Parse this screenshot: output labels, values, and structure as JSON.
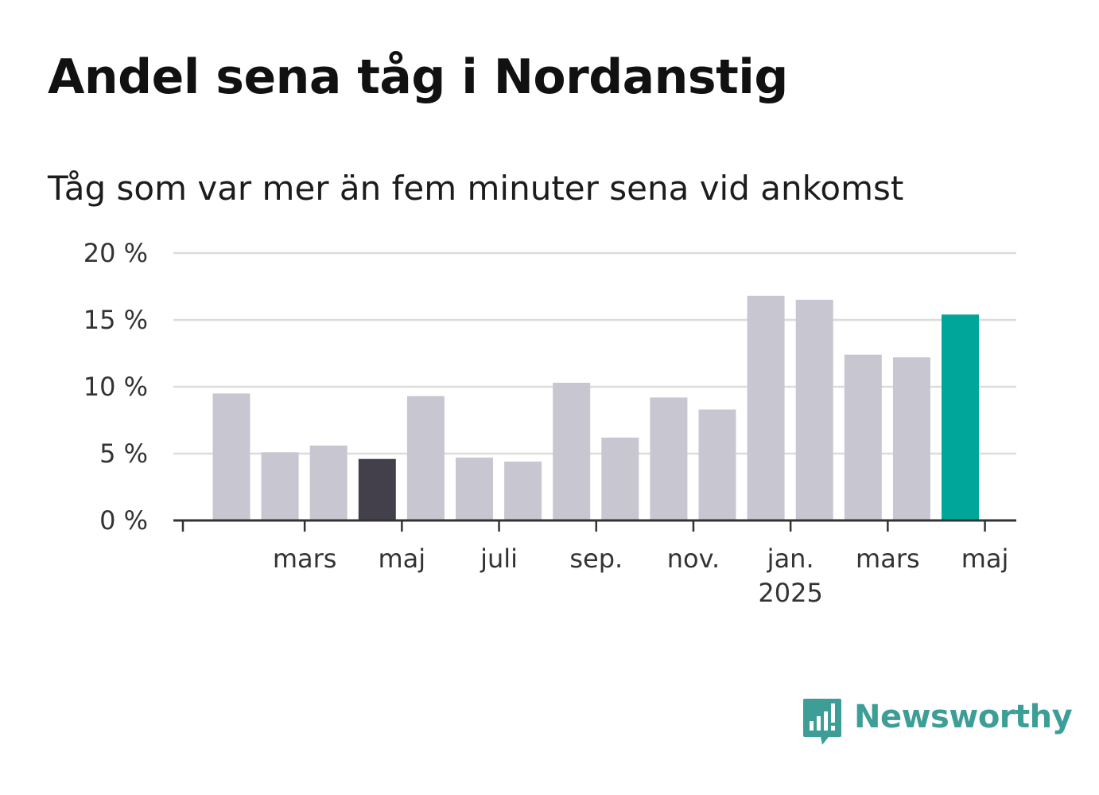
{
  "header": {
    "title": "Andel sena tåg i Nordanstig",
    "subtitle": "Tåg som var mer än fem minuter sena vid ankomst"
  },
  "brand": {
    "name": "Newsworthy",
    "icon": "newsworthy-logo-icon",
    "color": "#3d9e97"
  },
  "colors": {
    "bar_default": "#c8c7d1",
    "bar_highlight_dark": "#43404c",
    "bar_highlight_accent": "#00a69a",
    "gridline": "#dcdcdc",
    "axis": "#333333"
  },
  "chart_data": {
    "type": "bar",
    "title": "Andel sena tåg i Nordanstig",
    "subtitle": "Tåg som var mer än fem minuter sena vid ankomst",
    "xlabel": "",
    "ylabel": "",
    "ylim": [
      0,
      20
    ],
    "yticks": [
      0,
      5,
      10,
      15,
      20
    ],
    "ytick_labels": [
      "0 %",
      "5 %",
      "10 %",
      "15 %",
      "20 %"
    ],
    "y_unit": "%",
    "grid": true,
    "legend": "none",
    "x_tick_labels": [
      {
        "at": 0,
        "label": "",
        "sublabel": ""
      },
      {
        "at": 2,
        "label": "mars",
        "sublabel": ""
      },
      {
        "at": 4,
        "label": "maj",
        "sublabel": ""
      },
      {
        "at": 6,
        "label": "juli",
        "sublabel": ""
      },
      {
        "at": 8,
        "label": "sep.",
        "sublabel": ""
      },
      {
        "at": 10,
        "label": "nov.",
        "sublabel": ""
      },
      {
        "at": 12,
        "label": "jan.",
        "sublabel": "2025"
      },
      {
        "at": 14,
        "label": "mars",
        "sublabel": ""
      },
      {
        "at": 16,
        "label": "maj",
        "sublabel": ""
      }
    ],
    "values": [
      9.5,
      5.1,
      5.6,
      4.6,
      9.3,
      4.7,
      4.4,
      10.3,
      6.2,
      9.2,
      8.3,
      16.8,
      16.5,
      12.4,
      12.2,
      15.4
    ],
    "highlights": {
      "3": "dark",
      "15": "accent"
    }
  }
}
